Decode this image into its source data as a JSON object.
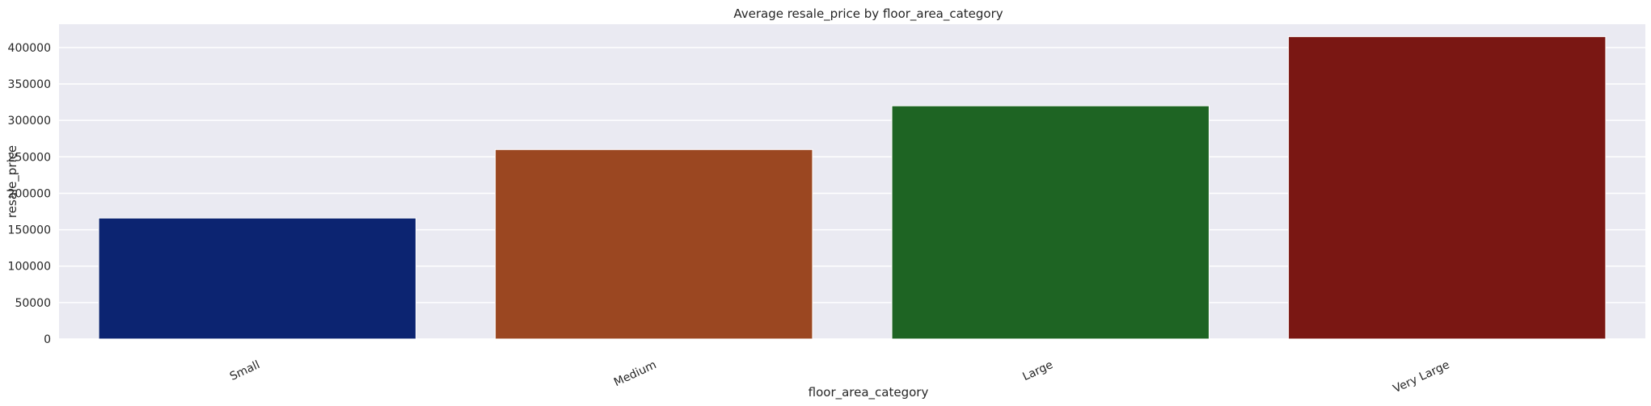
{
  "chart_data": {
    "type": "bar",
    "title": "Average resale_price by floor_area_category",
    "xlabel": "floor_area_category",
    "ylabel": "resale_price",
    "categories": [
      "Small",
      "Medium",
      "Large",
      "Very Large"
    ],
    "values": [
      166000,
      260000,
      320000,
      415000
    ],
    "colors": [
      "#0c2471",
      "#9b4721",
      "#1e6423",
      "#7a1713"
    ],
    "ylim": [
      0,
      432000
    ],
    "yticks": [
      0,
      50000,
      100000,
      150000,
      200000,
      250000,
      300000,
      350000,
      400000
    ],
    "ytick_labels": [
      "0",
      "50000",
      "100000",
      "150000",
      "200000",
      "250000",
      "300000",
      "350000",
      "400000"
    ],
    "grid": true,
    "background": "#eaeaf2"
  }
}
